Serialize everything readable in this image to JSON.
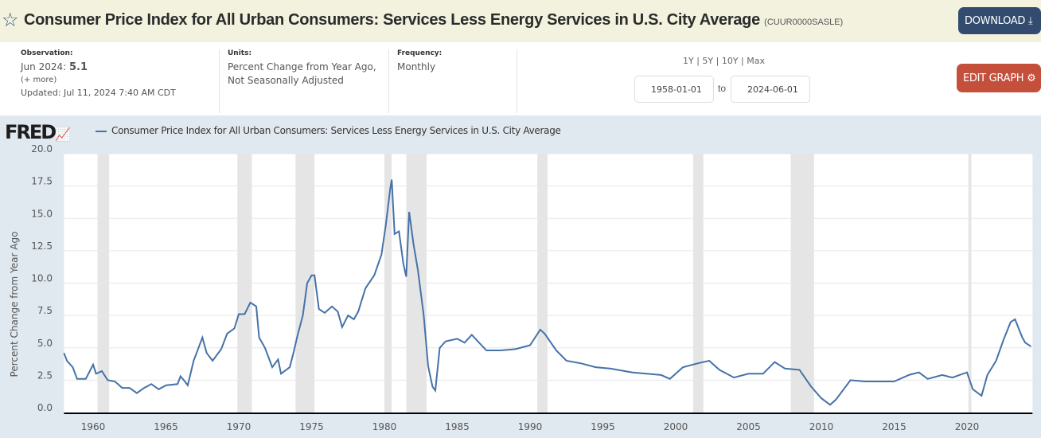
{
  "header": {
    "title": "Consumer Price Index for All Urban Consumers: Services Less Energy Services in U.S. City Average",
    "series_id": "(CUUR0000SASLE)",
    "download_label": "DOWNLOAD",
    "edit_label": "EDIT GRAPH"
  },
  "meta": {
    "obs_label": "Observation:",
    "obs_date": "Jun 2024:",
    "obs_value": "5.1",
    "more": "(+ more)",
    "updated": "Updated: Jul 11, 2024 7:40 AM CDT",
    "units_label": "Units:",
    "units_1": "Percent Change from Year Ago,",
    "units_2": "Not Seasonally Adjusted",
    "freq_label": "Frequency:",
    "freq": "Monthly"
  },
  "range": {
    "options": "1Y | 5Y | 10Y | Max",
    "start": "1958-01-01",
    "to": "to",
    "end": "2024-06-01"
  },
  "chart_data": {
    "type": "line",
    "logo": "FRED",
    "legend": "Consumer Price Index for All Urban Consumers: Services Less Energy Services in U.S. City Average",
    "ylabel": "Percent Change from Year Ago",
    "ylim": [
      0,
      20
    ],
    "xlim": [
      1958,
      2024.5
    ],
    "yticks": [
      "0.0",
      "2.5",
      "5.0",
      "7.5",
      "10.0",
      "12.5",
      "15.0",
      "17.5",
      "20.0"
    ],
    "xticks": [
      "1960",
      "1965",
      "1970",
      "1975",
      "1980",
      "1985",
      "1990",
      "1995",
      "2000",
      "2005",
      "2010",
      "2015",
      "2020"
    ],
    "recessions": [
      [
        1960.3,
        1961.1
      ],
      [
        1969.9,
        1970.9
      ],
      [
        1973.9,
        1975.2
      ],
      [
        1980.0,
        1980.5
      ],
      [
        1981.5,
        1982.9
      ],
      [
        1990.5,
        1991.2
      ],
      [
        2001.2,
        2001.9
      ],
      [
        2007.9,
        2009.5
      ],
      [
        2020.1,
        2020.3
      ]
    ],
    "series": [
      {
        "name": "CUUR0000SASLE",
        "points": [
          [
            1958.0,
            4.6
          ],
          [
            1958.2,
            4.0
          ],
          [
            1958.6,
            3.5
          ],
          [
            1958.9,
            2.6
          ],
          [
            1959.5,
            2.6
          ],
          [
            1960.0,
            3.7
          ],
          [
            1960.2,
            3.0
          ],
          [
            1960.6,
            3.2
          ],
          [
            1961.0,
            2.5
          ],
          [
            1961.5,
            2.4
          ],
          [
            1962.0,
            1.9
          ],
          [
            1962.5,
            1.9
          ],
          [
            1963.0,
            1.5
          ],
          [
            1963.5,
            1.9
          ],
          [
            1964.0,
            2.2
          ],
          [
            1964.5,
            1.8
          ],
          [
            1965.0,
            2.1
          ],
          [
            1965.8,
            2.2
          ],
          [
            1966.0,
            2.8
          ],
          [
            1966.3,
            2.4
          ],
          [
            1966.5,
            2.1
          ],
          [
            1966.9,
            4.0
          ],
          [
            1967.5,
            5.8
          ],
          [
            1967.8,
            4.6
          ],
          [
            1968.2,
            4.0
          ],
          [
            1968.8,
            4.9
          ],
          [
            1969.2,
            6.1
          ],
          [
            1969.7,
            6.5
          ],
          [
            1970.0,
            7.6
          ],
          [
            1970.4,
            7.6
          ],
          [
            1970.8,
            8.5
          ],
          [
            1971.2,
            8.2
          ],
          [
            1971.4,
            5.8
          ],
          [
            1971.8,
            5.0
          ],
          [
            1972.3,
            3.5
          ],
          [
            1972.7,
            4.1
          ],
          [
            1972.9,
            3.0
          ],
          [
            1973.5,
            3.5
          ],
          [
            1973.8,
            4.8
          ],
          [
            1974.0,
            5.8
          ],
          [
            1974.4,
            7.5
          ],
          [
            1974.7,
            10.0
          ],
          [
            1975.0,
            10.6
          ],
          [
            1975.2,
            10.6
          ],
          [
            1975.5,
            8.0
          ],
          [
            1975.9,
            7.7
          ],
          [
            1976.4,
            8.2
          ],
          [
            1976.8,
            7.8
          ],
          [
            1977.1,
            6.6
          ],
          [
            1977.5,
            7.5
          ],
          [
            1977.9,
            7.2
          ],
          [
            1978.2,
            7.8
          ],
          [
            1978.7,
            9.6
          ],
          [
            1979.3,
            10.6
          ],
          [
            1979.8,
            12.2
          ],
          [
            1980.1,
            14.5
          ],
          [
            1980.4,
            17.3
          ],
          [
            1980.5,
            18.0
          ],
          [
            1980.7,
            13.8
          ],
          [
            1981.0,
            14.0
          ],
          [
            1981.3,
            11.5
          ],
          [
            1981.5,
            10.5
          ],
          [
            1981.7,
            15.5
          ],
          [
            1982.0,
            13.0
          ],
          [
            1982.3,
            11.0
          ],
          [
            1982.7,
            7.5
          ],
          [
            1983.0,
            3.6
          ],
          [
            1983.3,
            2.0
          ],
          [
            1983.5,
            1.7
          ],
          [
            1983.8,
            5.0
          ],
          [
            1984.2,
            5.5
          ],
          [
            1985.0,
            5.7
          ],
          [
            1985.5,
            5.4
          ],
          [
            1986.0,
            6.0
          ],
          [
            1987.0,
            4.8
          ],
          [
            1988.0,
            4.8
          ],
          [
            1989.0,
            4.9
          ],
          [
            1990.0,
            5.2
          ],
          [
            1990.7,
            6.4
          ],
          [
            1991.0,
            6.1
          ],
          [
            1991.8,
            4.8
          ],
          [
            1992.5,
            4.0
          ],
          [
            1993.5,
            3.8
          ],
          [
            1994.5,
            3.5
          ],
          [
            1995.5,
            3.4
          ],
          [
            1997.0,
            3.1
          ],
          [
            1998.0,
            3.0
          ],
          [
            1999.0,
            2.9
          ],
          [
            1999.6,
            2.6
          ],
          [
            2000.5,
            3.5
          ],
          [
            2001.5,
            3.8
          ],
          [
            2002.3,
            4.0
          ],
          [
            2003.0,
            3.3
          ],
          [
            2004.0,
            2.7
          ],
          [
            2005.0,
            3.0
          ],
          [
            2006.0,
            3.0
          ],
          [
            2006.8,
            3.9
          ],
          [
            2007.5,
            3.4
          ],
          [
            2008.5,
            3.3
          ],
          [
            2009.3,
            2.0
          ],
          [
            2010.0,
            1.1
          ],
          [
            2010.6,
            0.6
          ],
          [
            2011.0,
            1.0
          ],
          [
            2012.0,
            2.5
          ],
          [
            2013.0,
            2.4
          ],
          [
            2014.0,
            2.4
          ],
          [
            2015.0,
            2.4
          ],
          [
            2016.0,
            2.9
          ],
          [
            2016.7,
            3.1
          ],
          [
            2017.3,
            2.6
          ],
          [
            2018.3,
            2.9
          ],
          [
            2019.0,
            2.7
          ],
          [
            2020.0,
            3.1
          ],
          [
            2020.4,
            1.8
          ],
          [
            2021.0,
            1.3
          ],
          [
            2021.4,
            2.9
          ],
          [
            2022.0,
            4.0
          ],
          [
            2022.5,
            5.6
          ],
          [
            2023.0,
            7.0
          ],
          [
            2023.3,
            7.2
          ],
          [
            2023.8,
            5.8
          ],
          [
            2024.0,
            5.4
          ],
          [
            2024.4,
            5.1
          ]
        ]
      }
    ]
  }
}
